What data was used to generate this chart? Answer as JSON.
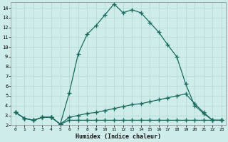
{
  "xlabel": "Humidex (Indice chaleur)",
  "background_color": "#ceecea",
  "grid_color": "#b0d8d4",
  "line_color": "#1a6b5e",
  "xlim": [
    -0.5,
    23.5
  ],
  "ylim": [
    2.0,
    14.6
  ],
  "xticks": [
    0,
    1,
    2,
    3,
    4,
    5,
    6,
    7,
    8,
    9,
    10,
    11,
    12,
    13,
    14,
    15,
    16,
    17,
    18,
    19,
    20,
    21,
    22,
    23
  ],
  "yticks": [
    2,
    3,
    4,
    5,
    6,
    7,
    8,
    9,
    10,
    11,
    12,
    13,
    14
  ],
  "line1_x": [
    0,
    1,
    2,
    3,
    4,
    5,
    6,
    7,
    8,
    9,
    10,
    11,
    12,
    13,
    14,
    15,
    16,
    17,
    18,
    19,
    20,
    21,
    22,
    23
  ],
  "line1_y": [
    3.3,
    2.7,
    2.5,
    2.8,
    2.8,
    2.1,
    5.3,
    9.3,
    11.3,
    12.2,
    13.3,
    14.4,
    13.5,
    13.8,
    13.5,
    12.5,
    11.5,
    10.2,
    9.0,
    6.2,
    4.0,
    3.2,
    2.5,
    2.5
  ],
  "line2_x": [
    0,
    1,
    2,
    3,
    4,
    5,
    6,
    7,
    8,
    9,
    10,
    11,
    12,
    13,
    14,
    15,
    16,
    17,
    18,
    19,
    20,
    21,
    22,
    23
  ],
  "line2_y": [
    3.3,
    2.7,
    2.5,
    2.8,
    2.8,
    2.1,
    2.8,
    3.0,
    3.2,
    3.3,
    3.5,
    3.7,
    3.9,
    4.1,
    4.2,
    4.4,
    4.6,
    4.8,
    5.0,
    5.2,
    4.2,
    3.3,
    2.5,
    2.5
  ],
  "line3_x": [
    0,
    1,
    2,
    3,
    4,
    5,
    6,
    7,
    8,
    9,
    10,
    11,
    12,
    13,
    14,
    15,
    16,
    17,
    18,
    19,
    20,
    21,
    22,
    23
  ],
  "line3_y": [
    3.3,
    2.7,
    2.5,
    2.8,
    2.8,
    2.1,
    2.5,
    2.5,
    2.5,
    2.5,
    2.5,
    2.5,
    2.5,
    2.5,
    2.5,
    2.5,
    2.5,
    2.5,
    2.5,
    2.5,
    2.5,
    2.5,
    2.5,
    2.5
  ]
}
